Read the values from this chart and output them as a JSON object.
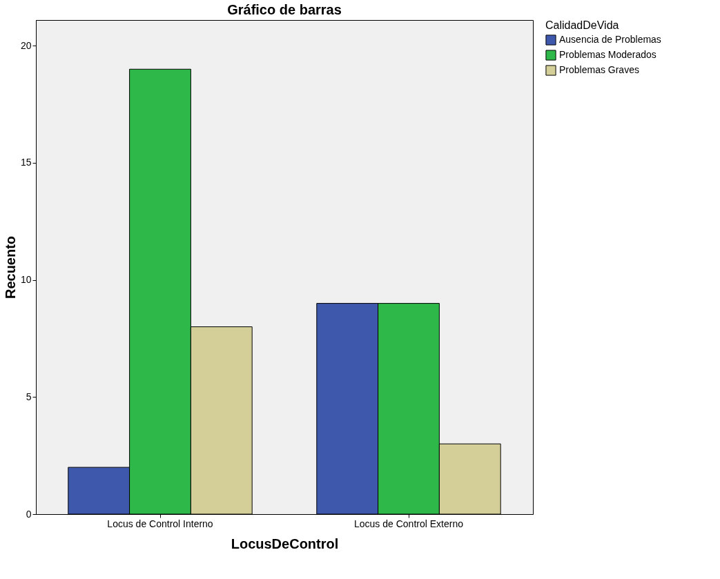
{
  "chart_data": {
    "type": "bar",
    "title": "Gráfico de barras",
    "xlabel": "LocusDeControl",
    "ylabel": "Recuento",
    "legend_title": "CalidadDeVida",
    "categories": [
      "Locus de Control Interno",
      "Locus de Control Externo"
    ],
    "series": [
      {
        "name": "Ausencia de Problemas",
        "color": "#3e58ac",
        "values": [
          2,
          9
        ]
      },
      {
        "name": "Problemas Moderados",
        "color": "#2fb84a",
        "values": [
          19,
          9
        ]
      },
      {
        "name": "Problemas Graves",
        "color": "#d4cf99",
        "values": [
          8,
          3
        ]
      }
    ],
    "ylim": [
      0,
      21.1
    ],
    "yticks": [
      0,
      5,
      10,
      15,
      20
    ],
    "grid": false,
    "legend": "top right"
  }
}
